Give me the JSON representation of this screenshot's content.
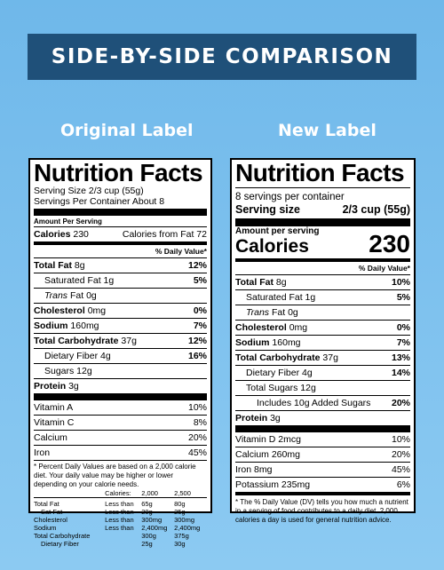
{
  "banner": "SIDE-BY-SIDE COMPARISON",
  "columns": {
    "original": "Original Label",
    "new": "New Label"
  },
  "original": {
    "title": "Nutrition Facts",
    "serving_size": "Serving Size 2/3 cup (55g)",
    "servings": "Servings Per Container About 8",
    "amount_per_serving": "Amount Per Serving",
    "calories_label": "Calories",
    "calories_value": "230",
    "calories_from_fat": "Calories from Fat 72",
    "dv_header": "% Daily Value*",
    "nutrients": [
      {
        "label": "Total Fat",
        "amount": "8g",
        "dv": "12%"
      },
      {
        "label": "Saturated Fat",
        "amount": "1g",
        "dv": "5%"
      },
      {
        "label_italic": "Trans",
        "label_rest": " Fat 0g"
      },
      {
        "label": "Cholesterol",
        "amount": "0mg",
        "dv": "0%"
      },
      {
        "label": "Sodium",
        "amount": "160mg",
        "dv": "7%"
      },
      {
        "label": "Total Carbohydrate",
        "amount": "37g",
        "dv": "12%"
      },
      {
        "label": "Dietary Fiber",
        "amount": "4g",
        "dv": "16%"
      },
      {
        "label": "Sugars 12g"
      },
      {
        "label": "Protein",
        "amount": "3g"
      }
    ],
    "vitamins": [
      {
        "label": "Vitamin A",
        "dv": "10%"
      },
      {
        "label": "Vitamin C",
        "dv": "8%"
      },
      {
        "label": "Calcium",
        "dv": "20%"
      },
      {
        "label": "Iron",
        "dv": "45%"
      }
    ],
    "footnote": "* Percent Daily Values are based on a 2,000 calorie diet. Your daily value may be higher or lower depending on your calorie needs.",
    "ref_table": {
      "header": [
        "Calories:",
        "2,000",
        "2,500"
      ],
      "rows": [
        [
          "Total Fat",
          "Less than",
          "65g",
          "80g"
        ],
        [
          "Sat Fat",
          "Less than",
          "20g",
          "25g"
        ],
        [
          "Cholesterol",
          "Less than",
          "300mg",
          "300mg"
        ],
        [
          "Sodium",
          "Less than",
          "2,400mg",
          "2,400mg"
        ],
        [
          "Total Carbohydrate",
          "",
          "300g",
          "375g"
        ],
        [
          "Dietary Fiber",
          "",
          "25g",
          "30g"
        ]
      ]
    }
  },
  "new": {
    "title": "Nutrition Facts",
    "servings": "8 servings per container",
    "serving_size_label": "Serving size",
    "serving_size_value": "2/3 cup (55g)",
    "amount_per_serving": "Amount per serving",
    "calories_label": "Calories",
    "calories_value": "230",
    "dv_header": "% Daily Value*",
    "nutrients": [
      {
        "label": "Total Fat",
        "amount": "8g",
        "dv": "10%"
      },
      {
        "label": "Saturated Fat",
        "amount": "1g",
        "dv": "5%"
      },
      {
        "label_italic": "Trans",
        "label_rest": " Fat 0g"
      },
      {
        "label": "Cholesterol",
        "amount": "0mg",
        "dv": "0%"
      },
      {
        "label": "Sodium",
        "amount": "160mg",
        "dv": "7%"
      },
      {
        "label": "Total Carbohydrate",
        "amount": "37g",
        "dv": "13%"
      },
      {
        "label": "Dietary Fiber",
        "amount": "4g",
        "dv": "14%"
      },
      {
        "label": "Total Sugars 12g"
      },
      {
        "label": "Includes 10g Added Sugars",
        "dv": "20%"
      },
      {
        "label": "Protein",
        "amount": "3g"
      }
    ],
    "vitamins": [
      {
        "label": "Vitamin D 2mcg",
        "dv": "10%"
      },
      {
        "label": "Calcium 260mg",
        "dv": "20%"
      },
      {
        "label": "Iron 8mg",
        "dv": "45%"
      },
      {
        "label": "Potassium 235mg",
        "dv": "6%"
      }
    ],
    "footnote": "* The % Daily Value (DV) tells you how much a nutrient in a serving of food contributes to a daily diet. 2,000 calories a day is used for general nutrition advice."
  }
}
